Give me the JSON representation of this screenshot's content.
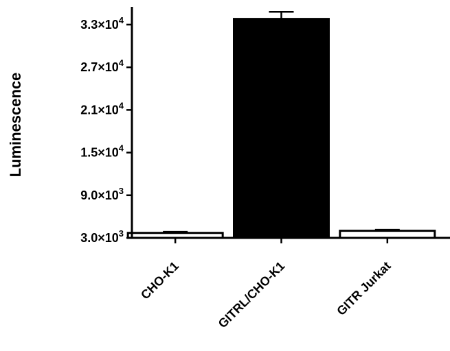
{
  "chart_data": {
    "type": "bar",
    "categories": [
      "CHO-K1",
      "GITRL/CHO-K1",
      "GITR Jurkat"
    ],
    "values": [
      3700,
      33800,
      4000
    ],
    "errors": [
      150,
      1000,
      150
    ],
    "bar_fills": [
      "#ffffff",
      "#000000",
      "#ffffff"
    ],
    "bar_stroke": "#000000",
    "title": "",
    "xlabel": "",
    "ylabel": "Luminescence",
    "ylim": [
      3000,
      35500
    ],
    "yticks": [
      {
        "value": 3000,
        "mantissa": "3.0",
        "exp": "3"
      },
      {
        "value": 9000,
        "mantissa": "9.0",
        "exp": "3"
      },
      {
        "value": 15000,
        "mantissa": "1.5",
        "exp": "4"
      },
      {
        "value": 21000,
        "mantissa": "2.1",
        "exp": "4"
      },
      {
        "value": 27000,
        "mantissa": "2.7",
        "exp": "4"
      },
      {
        "value": 33000,
        "mantissa": "3.3",
        "exp": "4"
      }
    ],
    "tick_multiplier": "×10",
    "grid": false,
    "legend": "none"
  }
}
